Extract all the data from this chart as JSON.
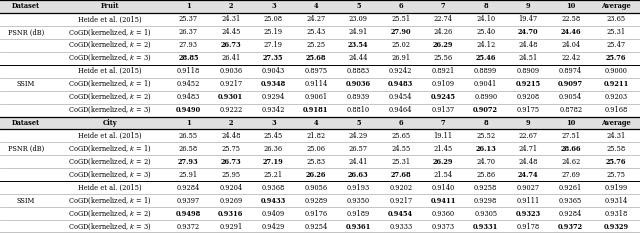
{
  "sections": [
    {
      "dataset": "Fruit",
      "metric_groups": [
        {
          "metric": "PSNR (dB)",
          "rows": [
            {
              "label": "Heide et al. (2015)",
              "values": [
                "25.37",
                "24.31",
                "25.08",
                "24.27",
                "23.09",
                "25.51",
                "22.74",
                "24.10",
                "19.47",
                "22.58",
                "23.65"
              ],
              "bold": []
            },
            {
              "label": "CoGD(kernelized, k = 1)",
              "values": [
                "26.37",
                "24.45",
                "25.19",
                "25.43",
                "24.91",
                "27.90",
                "24.26",
                "25.40",
                "24.70",
                "24.46",
                "25.31"
              ],
              "bold": [
                5,
                8,
                9
              ]
            },
            {
              "label": "CoGD(kernelized, k = 2)",
              "values": [
                "27.93",
                "26.73",
                "27.19",
                "25.25",
                "23.54",
                "25.02",
                "26.29",
                "24.12",
                "24.48",
                "24.04",
                "25.47"
              ],
              "bold": [
                1,
                4,
                6
              ]
            },
            {
              "label": "CoGD(kernelized, k = 3)",
              "values": [
                "28.85",
                "26.41",
                "27.35",
                "25.68",
                "24.44",
                "26.91",
                "25.56",
                "25.46",
                "24.51",
                "22.42",
                "25.76"
              ],
              "bold": [
                0,
                2,
                3,
                7,
                10
              ]
            }
          ]
        },
        {
          "metric": "SSIM",
          "rows": [
            {
              "label": "Heide et al. (2015)",
              "values": [
                "0.9118",
                "0.9036",
                "0.9043",
                "0.8975",
                "0.8883",
                "0.9242",
                "0.8921",
                "0.8899",
                "0.8909",
                "0.8974",
                "0.9000"
              ],
              "bold": []
            },
            {
              "label": "CoGD(kernelized, k = 1)",
              "values": [
                "0.9452",
                "0.9217",
                "0.9348",
                "0.9114",
                "0.9036",
                "0.9483",
                "0.9109",
                "0.9041",
                "0.9215",
                "0.9097",
                "0.9211"
              ],
              "bold": [
                2,
                4,
                5,
                8,
                9,
                10
              ]
            },
            {
              "label": "CoGD(kernelized, k = 2)",
              "values": [
                "0.9483",
                "0.9301",
                "0.9294",
                "0.9061",
                "0.8939",
                "0.9454",
                "0.9245",
                "0.8990",
                "0.9208",
                "0.9054",
                "0.9203"
              ],
              "bold": [
                1,
                6
              ]
            },
            {
              "label": "CoGD(kernelized, k = 3)",
              "values": [
                "0.9490",
                "0.9222",
                "0.9342",
                "0.9181",
                "0.8810",
                "0.9464",
                "0.9137",
                "0.9072",
                "0.9175",
                "0.8782",
                "0.9168"
              ],
              "bold": [
                0,
                3,
                7
              ]
            }
          ]
        }
      ]
    },
    {
      "dataset": "City",
      "metric_groups": [
        {
          "metric": "PSNR (dB)",
          "rows": [
            {
              "label": "Heide et al. (2015)",
              "values": [
                "26.55",
                "24.48",
                "25.45",
                "21.82",
                "24.29",
                "25.65",
                "19.11",
                "25.52",
                "22.67",
                "27.51",
                "24.31"
              ],
              "bold": []
            },
            {
              "label": "CoGD(kernelized, k = 1)",
              "values": [
                "26.58",
                "25.75",
                "26.36",
                "25.06",
                "26.57",
                "24.55",
                "21.45",
                "26.13",
                "24.71",
                "28.66",
                "25.58"
              ],
              "bold": [
                7,
                9
              ]
            },
            {
              "label": "CoGD(kernelized, k = 2)",
              "values": [
                "27.93",
                "26.73",
                "27.19",
                "25.83",
                "24.41",
                "25.31",
                "26.29",
                "24.70",
                "24.48",
                "24.62",
                "25.76"
              ],
              "bold": [
                0,
                1,
                2,
                6,
                10
              ]
            },
            {
              "label": "CoGD(kernelized, k = 3)",
              "values": [
                "25.91",
                "25.95",
                "25.21",
                "26.26",
                "26.63",
                "27.68",
                "21.54",
                "25.86",
                "24.74",
                "27.69",
                "25.75"
              ],
              "bold": [
                3,
                4,
                5,
                8
              ]
            }
          ]
        },
        {
          "metric": "SSIM",
          "rows": [
            {
              "label": "Heide et al. (2015)",
              "values": [
                "0.9284",
                "0.9204",
                "0.9368",
                "0.9056",
                "0.9193",
                "0.9202",
                "0.9140",
                "0.9258",
                "0.9027",
                "0.9261",
                "0.9199"
              ],
              "bold": []
            },
            {
              "label": "CoGD(kernelized, k = 1)",
              "values": [
                "0.9397",
                "0.9269",
                "0.9433",
                "0.9289",
                "0.9350",
                "0.9217",
                "0.9411",
                "0.9298",
                "0.9111",
                "0.9365",
                "0.9314"
              ],
              "bold": [
                2,
                6
              ]
            },
            {
              "label": "CoGD(kernelized, k = 2)",
              "values": [
                "0.9498",
                "0.9316",
                "0.9409",
                "0.9176",
                "0.9189",
                "0.9454",
                "0.9360",
                "0.9305",
                "0.9323",
                "0.9284",
                "0.9318"
              ],
              "bold": [
                0,
                1,
                5,
                8
              ]
            },
            {
              "label": "CoGD(kernelized, k = 3)",
              "values": [
                "0.9372",
                "0.9291",
                "0.9429",
                "0.9254",
                "0.9361",
                "0.9333",
                "0.9373",
                "0.9331",
                "0.9178",
                "0.9372",
                "0.9329"
              ],
              "bold": [
                4,
                7,
                9,
                10
              ]
            }
          ]
        }
      ]
    }
  ],
  "col_nums": [
    "1",
    "2",
    "3",
    "4",
    "5",
    "6",
    "7",
    "8",
    "9",
    "10",
    "Average"
  ],
  "font_size": 4.8,
  "header_bg": "#e0e0e0",
  "data_bg": "#ffffff",
  "thick_lw": 0.9,
  "thin_lw": 0.4,
  "metric_sep_lw": 0.7
}
